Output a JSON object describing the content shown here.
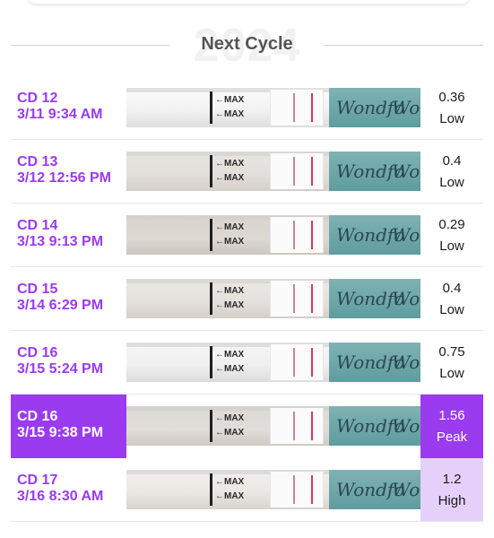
{
  "header": {
    "watermark": "2024",
    "title": "Next Cycle"
  },
  "strip_text": {
    "max": "←MAX",
    "brand": "Wondfo"
  },
  "colors": {
    "accent": "#9a3bf0",
    "accent_light": "#e5d0fb"
  },
  "entries": [
    {
      "cd": "CD 12",
      "datetime": "3/11 9:34 AM",
      "value": "0.36",
      "level": "Low"
    },
    {
      "cd": "CD 13",
      "datetime": "3/12 12:56 PM",
      "value": "0.4",
      "level": "Low"
    },
    {
      "cd": "CD 14",
      "datetime": "3/13 9:13 PM",
      "value": "0.29",
      "level": "Low"
    },
    {
      "cd": "CD 15",
      "datetime": "3/14 6:29 PM",
      "value": "0.4",
      "level": "Low"
    },
    {
      "cd": "CD 16",
      "datetime": "3/15 5:24 PM",
      "value": "0.75",
      "level": "Low"
    },
    {
      "cd": "CD 16",
      "datetime": "3/15 9:38 PM",
      "value": "1.56",
      "level": "Peak"
    },
    {
      "cd": "CD 17",
      "datetime": "3/16 8:30 AM",
      "value": "1.2",
      "level": "High"
    }
  ]
}
